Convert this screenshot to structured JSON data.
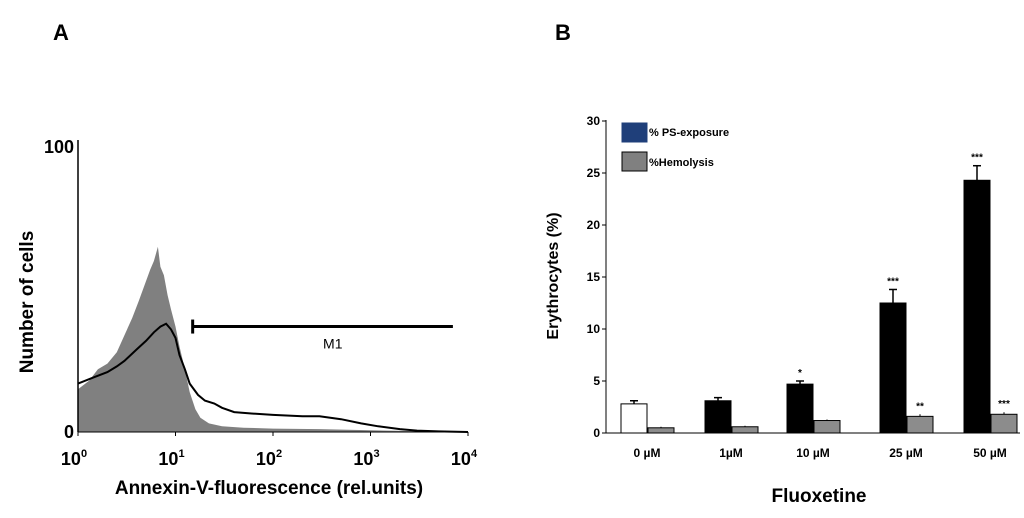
{
  "panels": {
    "a": {
      "letter": "A"
    },
    "b": {
      "letter": "B"
    }
  },
  "colors": {
    "histogram_fill": "#808080",
    "histogram_line": "#000000",
    "bar_dark": "#000000",
    "bar_control": "#ffffff",
    "bar_gray": "#8c8c8c",
    "legend_ps": "#1f3f7a",
    "legend_hemo": "#808080"
  },
  "chart_data": [
    {
      "type": "area",
      "xlabel": "Annexin-V-fluorescence (rel.units)",
      "ylabel": "Number of cells",
      "x_scale": "log",
      "xlim": [
        1,
        10000
      ],
      "ylim": [
        0,
        100
      ],
      "x_ticks": [
        {
          "base": "10",
          "exp": "0",
          "value": 1
        },
        {
          "base": "10",
          "exp": "1",
          "value": 10
        },
        {
          "base": "10",
          "exp": "2",
          "value": 100
        },
        {
          "base": "10",
          "exp": "3",
          "value": 1000
        },
        {
          "base": "10",
          "exp": "4",
          "value": 10000
        }
      ],
      "y_ticks": [
        {
          "label": "0",
          "value": 0
        },
        {
          "label": "100",
          "value": 100
        }
      ],
      "gate": {
        "label": "M1",
        "x_start": 15,
        "x_end": 7000,
        "y": 37
      },
      "series": [
        {
          "style": "filled",
          "points": [
            [
              1,
              15
            ],
            [
              1.3,
              18
            ],
            [
              1.6,
              22
            ],
            [
              2,
              24
            ],
            [
              2.5,
              28
            ],
            [
              3,
              34
            ],
            [
              3.6,
              40
            ],
            [
              4.2,
              46
            ],
            [
              5,
              53
            ],
            [
              5.5,
              57
            ],
            [
              6,
              60
            ],
            [
              6.6,
              65
            ],
            [
              7,
              58
            ],
            [
              7.6,
              55
            ],
            [
              8.3,
              48
            ],
            [
              9,
              43
            ],
            [
              10,
              37
            ],
            [
              11,
              30
            ],
            [
              12.5,
              22
            ],
            [
              14,
              14
            ],
            [
              16,
              8
            ],
            [
              18,
              5
            ],
            [
              22,
              3
            ],
            [
              30,
              2
            ],
            [
              50,
              1.5
            ],
            [
              100,
              1.2
            ],
            [
              300,
              1
            ],
            [
              1000,
              0.6
            ],
            [
              3000,
              0.3
            ],
            [
              10000,
              0
            ]
          ]
        },
        {
          "style": "outline",
          "points": [
            [
              1,
              17
            ],
            [
              1.4,
              19
            ],
            [
              2,
              21
            ],
            [
              2.5,
              23
            ],
            [
              3,
              25
            ],
            [
              4,
              29
            ],
            [
              5,
              32
            ],
            [
              6,
              35
            ],
            [
              7,
              37
            ],
            [
              8,
              38
            ],
            [
              9,
              36
            ],
            [
              10,
              33
            ],
            [
              11,
              27
            ],
            [
              12.5,
              22
            ],
            [
              14,
              17
            ],
            [
              17,
              13
            ],
            [
              20,
              11
            ],
            [
              25,
              10
            ],
            [
              30,
              8.5
            ],
            [
              40,
              7
            ],
            [
              60,
              6.5
            ],
            [
              100,
              6
            ],
            [
              200,
              5.5
            ],
            [
              300,
              5.5
            ],
            [
              500,
              4.5
            ],
            [
              800,
              3
            ],
            [
              1200,
              2
            ],
            [
              2000,
              1
            ],
            [
              3000,
              0.5
            ],
            [
              5000,
              0.2
            ],
            [
              10000,
              0
            ]
          ]
        }
      ]
    },
    {
      "type": "bar",
      "xlabel": "Fluoxetine",
      "ylabel": "Erythrocytes (%)",
      "ylim": [
        0,
        30
      ],
      "y_ticks": [
        0,
        5,
        10,
        15,
        20,
        25,
        30
      ],
      "categories": [
        "0 µM",
        "1µM",
        "10 µM",
        "25 µM",
        "50 µM"
      ],
      "legend": {
        "position": "top-left",
        "entries": [
          "% PS-exposure",
          "%Hemolysis"
        ]
      },
      "series": [
        {
          "name": "% PS-exposure",
          "values": [
            2.8,
            3.1,
            4.7,
            12.5,
            24.3
          ],
          "errors": [
            0.3,
            0.3,
            0.3,
            1.3,
            1.4
          ],
          "annotations": [
            "",
            "",
            "*",
            "***",
            "***"
          ]
        },
        {
          "name": "%Hemolysis",
          "values": [
            0.5,
            0.6,
            1.2,
            1.6,
            1.8
          ],
          "errors": [
            0.1,
            0.1,
            0.1,
            0.2,
            0.2
          ],
          "annotations": [
            "",
            "",
            "",
            "**",
            "***"
          ]
        }
      ]
    }
  ]
}
